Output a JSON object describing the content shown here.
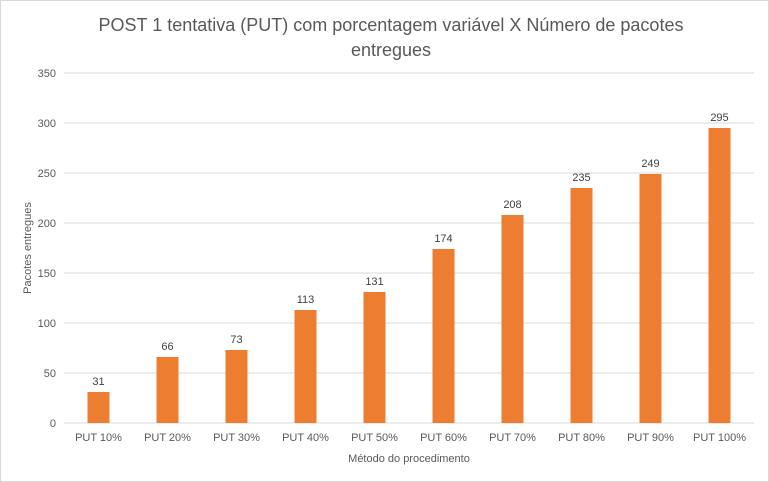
{
  "chart_data": {
    "type": "bar",
    "title": "POST 1 tentativa (PUT)  com porcentagem variável X Número de pacotes entregues",
    "xlabel": "Método  do procedimento",
    "ylabel": "Pacotes entregues",
    "categories": [
      "PUT 10%",
      "PUT 20%",
      "PUT 30%",
      "PUT 40%",
      "PUT 50%",
      "PUT 60%",
      "PUT 70%",
      "PUT 80%",
      "PUT 90%",
      "PUT 100%"
    ],
    "series": [
      {
        "values": [
          31,
          66,
          73,
          113,
          131,
          174,
          208,
          235,
          249,
          295
        ]
      }
    ],
    "ylim": [
      0,
      350
    ],
    "yticks": [
      0,
      50,
      100,
      150,
      200,
      250,
      300,
      350
    ],
    "grid": true,
    "data_labels": true,
    "legend": "none",
    "colors": {
      "bar": "#ED7D31",
      "grid": "#d9d9d9",
      "text": "#595959"
    }
  }
}
